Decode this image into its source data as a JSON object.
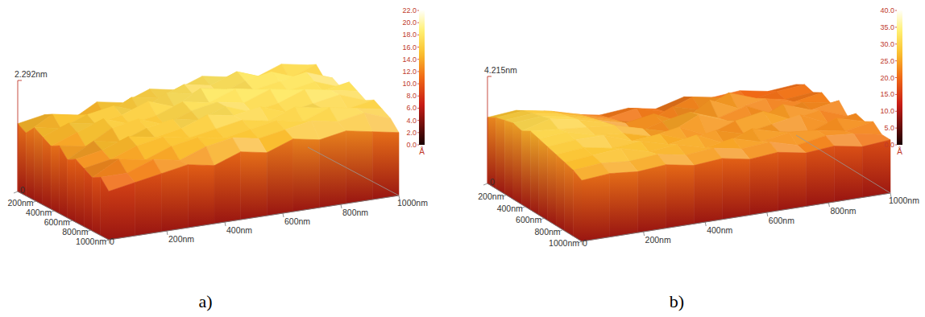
{
  "chart_data": [
    {
      "type": "surface",
      "label": "a)",
      "x": [
        0,
        91,
        182,
        273,
        364,
        455,
        545,
        636,
        727,
        818,
        909,
        1000
      ],
      "y": [
        0,
        91,
        182,
        273,
        364,
        455,
        545,
        636,
        727,
        818,
        909,
        1000
      ],
      "values": [
        [
          14,
          15,
          13,
          16,
          15,
          17,
          16,
          18,
          17,
          16,
          18,
          17
        ],
        [
          13,
          16,
          15,
          14,
          17,
          16,
          18,
          17,
          19,
          17,
          16,
          18
        ],
        [
          15,
          14,
          16,
          17,
          15,
          18,
          17,
          16,
          18,
          19,
          17,
          16
        ],
        [
          14,
          16,
          15,
          16,
          18,
          16,
          19,
          18,
          17,
          18,
          19,
          17
        ],
        [
          13,
          15,
          17,
          15,
          16,
          18,
          17,
          19,
          18,
          17,
          18,
          16
        ],
        [
          14,
          13,
          16,
          17,
          15,
          17,
          18,
          17,
          19,
          18,
          17,
          18
        ],
        [
          12,
          15,
          14,
          16,
          17,
          16,
          18,
          16,
          17,
          19,
          18,
          17
        ],
        [
          13,
          14,
          16,
          15,
          16,
          18,
          17,
          18,
          16,
          17,
          18,
          16
        ],
        [
          12,
          13,
          15,
          16,
          15,
          16,
          17,
          16,
          18,
          17,
          16,
          17
        ],
        [
          11,
          14,
          13,
          15,
          16,
          15,
          16,
          17,
          16,
          18,
          17,
          16
        ],
        [
          12,
          12,
          14,
          13,
          15,
          16,
          15,
          16,
          17,
          16,
          17,
          15
        ],
        [
          10,
          11,
          12,
          13,
          12,
          14,
          13,
          15,
          14,
          15,
          14,
          13
        ]
      ],
      "xlim": [
        0,
        1000
      ],
      "ylim": [
        0,
        1000
      ],
      "zlim": [
        0,
        22.92
      ],
      "xticks": [
        0,
        {
          "value": 200,
          "label": "200nm"
        },
        {
          "value": 400,
          "label": "400nm"
        },
        {
          "value": 600,
          "label": "600nm"
        },
        {
          "value": 800,
          "label": "800nm"
        },
        {
          "value": 1000,
          "label": "1000nm"
        }
      ],
      "yticks": [
        0,
        {
          "value": 200,
          "label": "200nm"
        },
        {
          "value": 400,
          "label": "400nm"
        },
        {
          "value": 600,
          "label": "600nm"
        },
        {
          "value": 800,
          "label": "800nm"
        },
        {
          "value": 1000,
          "label": "1000nm"
        }
      ],
      "zticks": [
        {
          "value": 22.92,
          "label": "2.292nm"
        }
      ],
      "colorbar": {
        "lim": [
          0,
          22
        ],
        "label": "Å",
        "ticks": [
          {
            "value": 0,
            "label": "0.0"
          },
          {
            "value": 2,
            "label": "2.0"
          },
          {
            "value": 4,
            "label": "4.0"
          },
          {
            "value": 6,
            "label": "6.0"
          },
          {
            "value": 8,
            "label": "8.0"
          },
          {
            "value": 10,
            "label": "10.0"
          },
          {
            "value": 12,
            "label": "12.0"
          },
          {
            "value": 14,
            "label": "14.0"
          },
          {
            "value": 16,
            "label": "16.0"
          },
          {
            "value": 18,
            "label": "18.0"
          },
          {
            "value": 20,
            "label": "20.0"
          },
          {
            "value": 22,
            "label": "22.0"
          }
        ]
      }
    },
    {
      "type": "surface",
      "label": "b)",
      "x": [
        0,
        91,
        182,
        273,
        364,
        455,
        545,
        636,
        727,
        818,
        909,
        1000
      ],
      "y": [
        0,
        91,
        182,
        273,
        364,
        455,
        545,
        636,
        727,
        818,
        909,
        1000
      ],
      "values": [
        [
          26,
          27,
          25,
          22,
          20,
          21,
          19,
          22,
          20,
          21,
          19,
          20
        ],
        [
          28,
          29,
          27,
          24,
          21,
          23,
          20,
          24,
          22,
          19,
          21,
          22
        ],
        [
          29,
          30,
          28,
          25,
          22,
          19,
          24,
          21,
          26,
          22,
          20,
          21
        ],
        [
          30,
          31,
          29,
          26,
          23,
          25,
          20,
          27,
          22,
          24,
          21,
          23
        ],
        [
          29,
          32,
          30,
          27,
          21,
          24,
          26,
          22,
          25,
          20,
          23,
          21
        ],
        [
          31,
          30,
          29,
          28,
          25,
          22,
          27,
          23,
          21,
          26,
          22,
          24
        ],
        [
          30,
          31,
          28,
          27,
          24,
          26,
          21,
          25,
          27,
          22,
          24,
          20
        ],
        [
          29,
          30,
          30,
          26,
          27,
          23,
          25,
          22,
          24,
          26,
          21,
          23
        ],
        [
          28,
          29,
          27,
          28,
          25,
          27,
          22,
          26,
          23,
          21,
          25,
          22
        ],
        [
          27,
          28,
          29,
          26,
          27,
          24,
          26,
          23,
          25,
          24,
          22,
          24
        ],
        [
          26,
          27,
          26,
          27,
          25,
          26,
          24,
          25,
          22,
          24,
          23,
          21
        ],
        [
          24,
          25,
          24,
          25,
          23,
          24,
          22,
          23,
          21,
          22,
          20,
          21
        ]
      ],
      "xlim": [
        0,
        1000
      ],
      "ylim": [
        0,
        1000
      ],
      "zlim": [
        0,
        42.15
      ],
      "xticks": [
        0,
        {
          "value": 200,
          "label": "200nm"
        },
        {
          "value": 400,
          "label": "400nm"
        },
        {
          "value": 600,
          "label": "600nm"
        },
        {
          "value": 800,
          "label": "800nm"
        },
        {
          "value": 1000,
          "label": "1000nm"
        }
      ],
      "yticks": [
        0,
        {
          "value": 200,
          "label": "200nm"
        },
        {
          "value": 400,
          "label": "400nm"
        },
        {
          "value": 600,
          "label": "600nm"
        },
        {
          "value": 800,
          "label": "800nm"
        },
        {
          "value": 1000,
          "label": "1000nm"
        }
      ],
      "zticks": [
        {
          "value": 42.15,
          "label": "4.215nm"
        }
      ],
      "colorbar": {
        "lim": [
          0,
          40
        ],
        "label": "Å",
        "ticks": [
          {
            "value": 0,
            "label": "0.0"
          },
          {
            "value": 5,
            "label": "5.0"
          },
          {
            "value": 10,
            "label": "10.0"
          },
          {
            "value": 15,
            "label": "15.0"
          },
          {
            "value": 20,
            "label": "20.0"
          },
          {
            "value": 25,
            "label": "25.0"
          },
          {
            "value": 30,
            "label": "30.0"
          },
          {
            "value": 35,
            "label": "35.0"
          },
          {
            "value": 40,
            "label": "40.0"
          }
        ]
      }
    }
  ]
}
